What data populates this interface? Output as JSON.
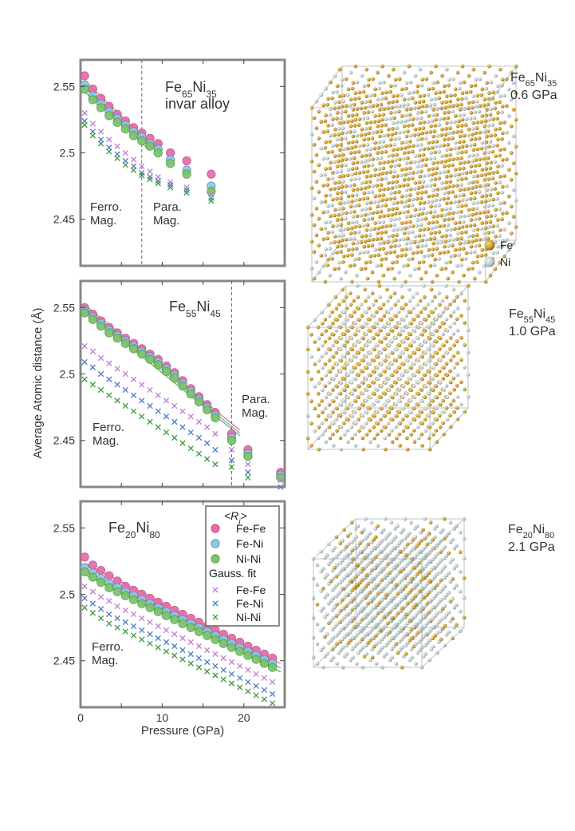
{
  "colors": {
    "fe_fe": "#e86aa8",
    "fe_ni": "#8fc6e4",
    "ni_ni": "#7cc46a",
    "fe_atom": "#c89a2c",
    "ni_atom": "#b9c6c6",
    "fit_fe_fe": "#e05555",
    "fit_fe_ni": "#5a8fd0",
    "fit_ni_ni": "#4a9a3c"
  },
  "chart_data": [
    {
      "type": "scatter",
      "title": "Fe65Ni35",
      "title_main": "Fe",
      "title_sub1": "65",
      "title_mid": "Ni",
      "title_sub2": "35",
      "subtitle": "invar alloy",
      "xlim": [
        0,
        25
      ],
      "ylim": [
        2.415,
        2.57
      ],
      "yticks": [
        2.45,
        2.5,
        2.55
      ],
      "ytick_labels": [
        "2.45",
        "2.5",
        "2.55"
      ],
      "transition_x": 7.5,
      "left_region": [
        "Ferro.",
        "Mag."
      ],
      "right_region": [
        "Para.",
        "Mag."
      ],
      "x": [
        0.5,
        1.5,
        2.5,
        3.5,
        4.5,
        5.5,
        6.5,
        7.5,
        8.5,
        9.5,
        11,
        13,
        16
      ],
      "series": [
        {
          "name": "Fe-Fe",
          "marker": "circle",
          "values": [
            2.558,
            2.548,
            2.541,
            2.535,
            2.529,
            2.524,
            2.519,
            2.515,
            2.511,
            2.507,
            2.5,
            2.494,
            2.484
          ]
        },
        {
          "name": "Fe-Ni",
          "marker": "circle",
          "values": [
            2.551,
            2.543,
            2.537,
            2.531,
            2.526,
            2.521,
            2.516,
            2.512,
            2.507,
            2.503,
            2.495,
            2.487,
            2.475
          ]
        },
        {
          "name": "Ni-Ni",
          "marker": "circle",
          "values": [
            2.548,
            2.54,
            2.534,
            2.528,
            2.523,
            2.518,
            2.513,
            2.509,
            2.505,
            2.5,
            2.492,
            2.484,
            2.471
          ]
        },
        {
          "name": "Fe-Fe",
          "marker": "x",
          "values": [
            2.53,
            2.522,
            2.516,
            2.51,
            2.505,
            2.5,
            2.495,
            2.49,
            2.486,
            2.482,
            2.478,
            2.474,
            2.469
          ]
        },
        {
          "name": "Fe-Ni",
          "marker": "x",
          "values": [
            2.524,
            2.516,
            2.51,
            2.504,
            2.499,
            2.494,
            2.49,
            2.485,
            2.482,
            2.479,
            2.476,
            2.472,
            2.466
          ]
        },
        {
          "name": "Ni-Ni",
          "marker": "x",
          "values": [
            2.521,
            2.513,
            2.507,
            2.501,
            2.496,
            2.491,
            2.487,
            2.483,
            2.48,
            2.477,
            2.474,
            2.47,
            2.464
          ]
        }
      ]
    },
    {
      "type": "scatter",
      "title": "Fe55Ni45",
      "title_main": "Fe",
      "title_sub1": "55",
      "title_mid": "Ni",
      "title_sub2": "45",
      "subtitle": "",
      "xlim": [
        0,
        25
      ],
      "ylim": [
        2.415,
        2.57
      ],
      "yticks": [
        2.45,
        2.5,
        2.55
      ],
      "ytick_labels": [
        "2.45",
        "2.5",
        "2.55"
      ],
      "transition_x": 18.5,
      "left_region": [
        "Ferro.",
        "Mag."
      ],
      "right_region": [
        "Para.",
        "Mag."
      ],
      "x": [
        0.5,
        1.5,
        2.5,
        3.5,
        4.5,
        5.5,
        6.5,
        7.5,
        8.5,
        9.5,
        10.5,
        11.5,
        12.5,
        13.5,
        14.5,
        15.5,
        16.5,
        18.5,
        20.5,
        24.5
      ],
      "series": [
        {
          "name": "Fe-Fe",
          "marker": "circle",
          "values": [
            2.55,
            2.545,
            2.54,
            2.535,
            2.531,
            2.527,
            2.523,
            2.519,
            2.515,
            2.511,
            2.506,
            2.501,
            2.495,
            2.489,
            2.483,
            2.477,
            2.471,
            2.455,
            2.443,
            2.426
          ]
        },
        {
          "name": "Fe-Ni",
          "marker": "circle",
          "values": [
            2.548,
            2.543,
            2.538,
            2.533,
            2.529,
            2.525,
            2.521,
            2.517,
            2.513,
            2.509,
            2.504,
            2.499,
            2.493,
            2.487,
            2.481,
            2.475,
            2.469,
            2.452,
            2.44,
            2.424
          ]
        },
        {
          "name": "Ni-Ni",
          "marker": "circle",
          "values": [
            2.546,
            2.541,
            2.536,
            2.531,
            2.527,
            2.523,
            2.519,
            2.515,
            2.511,
            2.507,
            2.502,
            2.497,
            2.491,
            2.485,
            2.479,
            2.473,
            2.467,
            2.45,
            2.438,
            2.422
          ]
        },
        {
          "name": "Fe-Fe",
          "marker": "x",
          "values": [
            2.521,
            2.517,
            2.512,
            2.508,
            2.504,
            2.5,
            2.496,
            2.492,
            2.488,
            2.484,
            2.48,
            2.476,
            2.472,
            2.468,
            2.464,
            2.46,
            2.455,
            2.443,
            2.432,
            2.42
          ]
        },
        {
          "name": "Fe-Ni",
          "marker": "x",
          "values": [
            2.509,
            2.505,
            2.5,
            2.496,
            2.492,
            2.488,
            2.484,
            2.48,
            2.476,
            2.472,
            2.468,
            2.464,
            2.46,
            2.456,
            2.452,
            2.448,
            2.443,
            2.435,
            2.426,
            2.415
          ]
        },
        {
          "name": "Ni-Ni",
          "marker": "x",
          "values": [
            2.496,
            2.492,
            2.488,
            2.484,
            2.48,
            2.476,
            2.472,
            2.468,
            2.464,
            2.46,
            2.456,
            2.452,
            2.448,
            2.444,
            2.44,
            2.436,
            2.432,
            2.43,
            2.422,
            2.413
          ]
        }
      ]
    },
    {
      "type": "scatter",
      "title": "Fe20Ni80",
      "title_main": "Fe",
      "title_sub1": "20",
      "title_mid": "Ni",
      "title_sub2": "80",
      "subtitle": "",
      "xlim": [
        0,
        25
      ],
      "ylim": [
        2.415,
        2.57
      ],
      "yticks": [
        2.45,
        2.5,
        2.55
      ],
      "ytick_labels": [
        "2.45",
        "2.5",
        "2.55"
      ],
      "transition_x": null,
      "left_region": [
        "Ferro.",
        "Mag."
      ],
      "right_region": [],
      "xticks": [
        0,
        10,
        20
      ],
      "xtick_labels": [
        "0",
        "10",
        "20"
      ],
      "xlabel": "Pressure (GPa)",
      "x": [
        0.5,
        1.5,
        2.5,
        3.5,
        4.5,
        5.5,
        6.5,
        7.5,
        8.5,
        9.5,
        10.5,
        11.5,
        12.5,
        13.5,
        14.5,
        15.5,
        16.5,
        17.5,
        18.5,
        19.5,
        20.5,
        21.5,
        22.5,
        23.5
      ],
      "series": [
        {
          "name": "Fe-Fe",
          "marker": "circle",
          "values": [
            2.528,
            2.522,
            2.518,
            2.514,
            2.51,
            2.506,
            2.503,
            2.5,
            2.497,
            2.494,
            2.491,
            2.488,
            2.485,
            2.482,
            2.479,
            2.476,
            2.473,
            2.47,
            2.467,
            2.464,
            2.461,
            2.458,
            2.455,
            2.452
          ]
        },
        {
          "name": "Fe-Ni",
          "marker": "circle",
          "values": [
            2.52,
            2.516,
            2.512,
            2.508,
            2.505,
            2.502,
            2.499,
            2.496,
            2.493,
            2.49,
            2.487,
            2.484,
            2.481,
            2.478,
            2.475,
            2.472,
            2.469,
            2.466,
            2.463,
            2.46,
            2.457,
            2.454,
            2.451,
            2.448
          ]
        },
        {
          "name": "Ni-Ni",
          "marker": "circle",
          "values": [
            2.517,
            2.513,
            2.509,
            2.505,
            2.502,
            2.499,
            2.496,
            2.493,
            2.49,
            2.487,
            2.484,
            2.481,
            2.478,
            2.475,
            2.472,
            2.469,
            2.466,
            2.463,
            2.46,
            2.457,
            2.454,
            2.451,
            2.448,
            2.445
          ]
        },
        {
          "name": "Fe-Fe",
          "marker": "x",
          "values": [
            2.506,
            2.502,
            2.498,
            2.495,
            2.491,
            2.488,
            2.485,
            2.482,
            2.479,
            2.476,
            2.473,
            2.47,
            2.467,
            2.464,
            2.461,
            2.458,
            2.455,
            2.452,
            2.449,
            2.446,
            2.443,
            2.44,
            2.437,
            2.434
          ]
        },
        {
          "name": "Fe-Ni",
          "marker": "x",
          "values": [
            2.497,
            2.493,
            2.489,
            2.485,
            2.482,
            2.479,
            2.476,
            2.473,
            2.47,
            2.467,
            2.464,
            2.461,
            2.458,
            2.455,
            2.452,
            2.449,
            2.446,
            2.443,
            2.44,
            2.437,
            2.434,
            2.431,
            2.428,
            2.425
          ]
        },
        {
          "name": "Ni-Ni",
          "marker": "x",
          "values": [
            2.49,
            2.486,
            2.482,
            2.478,
            2.475,
            2.472,
            2.469,
            2.466,
            2.463,
            2.46,
            2.457,
            2.454,
            2.451,
            2.448,
            2.445,
            2.442,
            2.439,
            2.436,
            2.433,
            2.43,
            2.427,
            2.424,
            2.421,
            2.418
          ]
        }
      ]
    }
  ],
  "shared_ylabel": "Average Atomic distance (Å)",
  "legend": {
    "header": "<R",
    "header_sub": "i",
    "header_end": ">",
    "items": [
      "Fe-Fe",
      "Fe-Ni",
      "Ni-Ni"
    ],
    "fit_header": "Gauss. fit",
    "fit_items": [
      "Fe-Fe",
      "Fe-Ni",
      "Ni-Ni"
    ]
  },
  "renders": [
    {
      "label_main": "Fe",
      "label_sub1": "65",
      "label_mid": "Ni",
      "label_sub2": "35",
      "pressure": "0.6 GPa",
      "fe_fraction": 0.65
    },
    {
      "label_main": "Fe",
      "label_sub1": "55",
      "label_mid": "Ni",
      "label_sub2": "45",
      "pressure": "1.0 GPa",
      "fe_fraction": 0.55
    },
    {
      "label_main": "Fe",
      "label_sub1": "20",
      "label_mid": "Ni",
      "label_sub2": "80",
      "pressure": "2.1 GPa",
      "fe_fraction": 0.2
    }
  ],
  "atom_legend": [
    "Fe",
    "Ni"
  ]
}
